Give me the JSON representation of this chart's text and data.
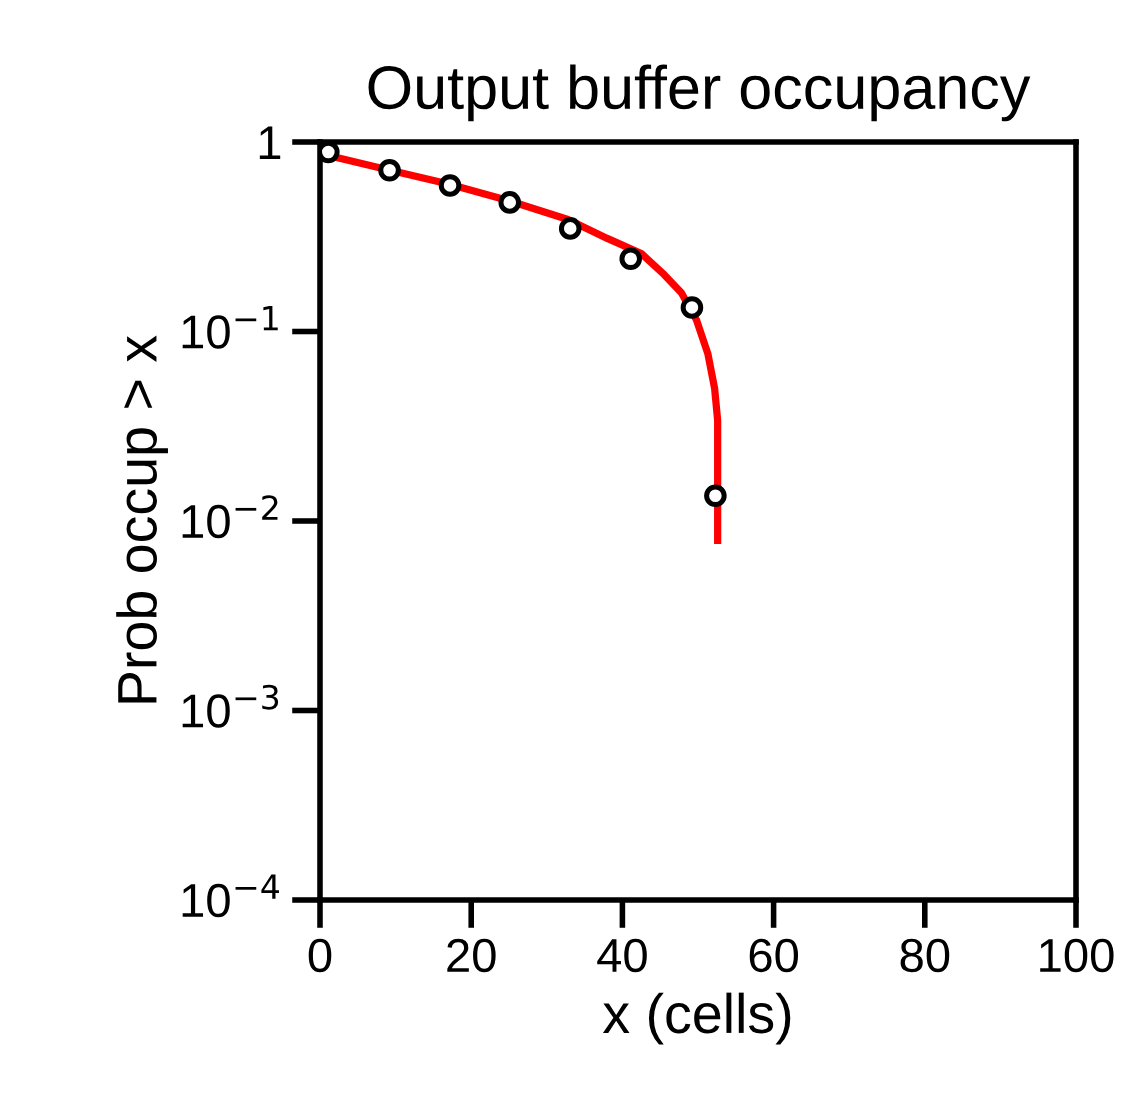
{
  "chart_data": {
    "type": "line",
    "title": "Output buffer occupancy",
    "xlabel": "x (cells)",
    "ylabel": "Prob occup > x",
    "xlim": [
      0,
      100
    ],
    "xticks": [
      0,
      20,
      40,
      60,
      80,
      100
    ],
    "ylim": [
      0.0001,
      1
    ],
    "yticks": [
      {
        "value": 0.0001,
        "label": "10$^{−4}$"
      },
      {
        "value": 0.001,
        "label": "10$^{−3}$"
      },
      {
        "value": 0.01,
        "label": "10$^{−2}$"
      },
      {
        "value": 0.1,
        "label": "10$^{−1}$"
      },
      {
        "value": 1,
        "label": "1"
      }
    ],
    "log": "y",
    "grid": false,
    "series": [
      {
        "color": "#ff0000",
        "marker": "none",
        "line_style": "solid",
        "x": [
          0,
          8,
          17,
          25,
          32.8,
          38,
          42.5,
          45.5,
          47.8,
          49.8,
          51.3,
          52.2,
          52.6,
          52.6
        ],
        "values": [
          0.87,
          0.73,
          0.6,
          0.49,
          0.39,
          0.31,
          0.258,
          0.2,
          0.16,
          0.115,
          0.0765,
          0.05,
          0.034,
          0.0079
        ]
      },
      {
        "type": "scatter",
        "color": "#000000",
        "marker": "circle",
        "x": [
          1.1,
          9.2,
          17.2,
          25.1,
          33.1,
          41.1,
          49.2,
          52.3
        ],
        "values": [
          0.885,
          0.71,
          0.59,
          0.48,
          0.35,
          0.242,
          0.134,
          0.0136
        ]
      }
    ]
  }
}
